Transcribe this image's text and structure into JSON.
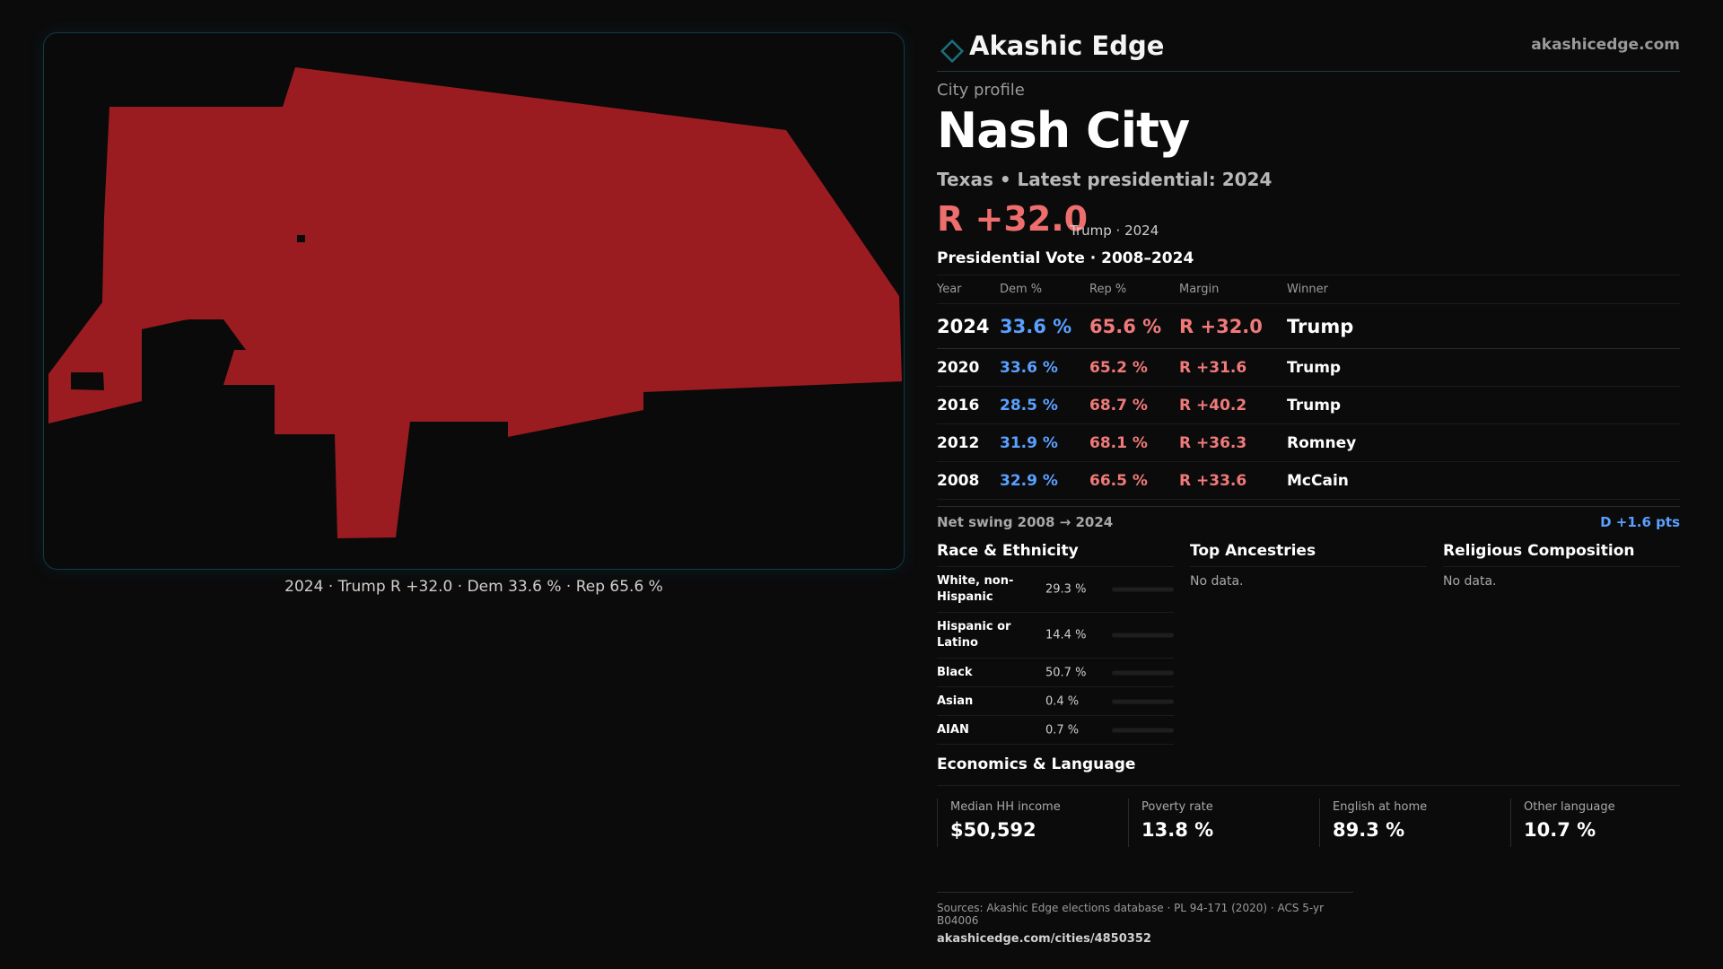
{
  "map": {
    "caption": "2024 · Trump R +32.0 · Dem 33.6 % · Rep 65.6 %",
    "fill_color": "#9b1c20"
  },
  "brand": {
    "name": "Akashic Edge",
    "url": "akashicedge.com",
    "accent_color": "#1a6f7a",
    "logo_icon": "diamond-outline-icon"
  },
  "profile": {
    "kicker": "City profile",
    "city": "Nash City",
    "subline": "Texas • Latest presidential: 2024",
    "margin": "R +32.0",
    "margin_note": "Trump · 2024"
  },
  "vote": {
    "title": "Presidential Vote · 2008–2024",
    "columns": [
      "Year",
      "Dem %",
      "Rep %",
      "Margin",
      "Winner"
    ],
    "rows": [
      {
        "year": "2024",
        "dem": "33.6 %",
        "rep": "65.6 %",
        "margin": "R +32.0",
        "winner": "Trump"
      },
      {
        "year": "2020",
        "dem": "33.6 %",
        "rep": "65.2 %",
        "margin": "R +31.6",
        "winner": "Trump"
      },
      {
        "year": "2016",
        "dem": "28.5 %",
        "rep": "68.7 %",
        "margin": "R +40.2",
        "winner": "Trump"
      },
      {
        "year": "2012",
        "dem": "31.9 %",
        "rep": "68.1 %",
        "margin": "R +36.3",
        "winner": "Romney"
      },
      {
        "year": "2008",
        "dem": "32.9 %",
        "rep": "66.5 %",
        "margin": "R +33.6",
        "winner": "McCain"
      }
    ],
    "swing_label": "Net swing 2008 → 2024",
    "swing_value": "D +1.6 pts"
  },
  "race": {
    "title": "Race & Ethnicity",
    "rows": [
      {
        "label": "White, non-Hispanic",
        "pct": "29.3 %",
        "value": 29.3,
        "color": "#8a8f98"
      },
      {
        "label": "Hispanic or Latino",
        "pct": "14.4 %",
        "value": 14.4,
        "color": "#e08a1e"
      },
      {
        "label": "Black",
        "pct": "50.7 %",
        "value": 50.7,
        "color": "#9b7fe6"
      },
      {
        "label": "Asian",
        "pct": "0.4 %",
        "value": 0.4,
        "color": "#3fb8c9"
      },
      {
        "label": "AIAN",
        "pct": "0.7 %",
        "value": 0.7,
        "color": "#c77b3a"
      }
    ]
  },
  "ancestries": {
    "title": "Top Ancestries",
    "empty": "No data."
  },
  "religion": {
    "title": "Religious Composition",
    "empty": "No data."
  },
  "economics": {
    "title": "Economics & Language",
    "stats": [
      {
        "label": "Median HH income",
        "value": "$50,592"
      },
      {
        "label": "Poverty rate",
        "value": "13.8 %"
      },
      {
        "label": "English at home",
        "value": "89.3 %"
      },
      {
        "label": "Other language",
        "value": "10.7 %"
      }
    ]
  },
  "sources": {
    "text": "Sources: Akashic Edge elections database · PL 94-171 (2020) · ACS 5-yr B04006",
    "url": "akashicedge.com/cities/4850352"
  }
}
